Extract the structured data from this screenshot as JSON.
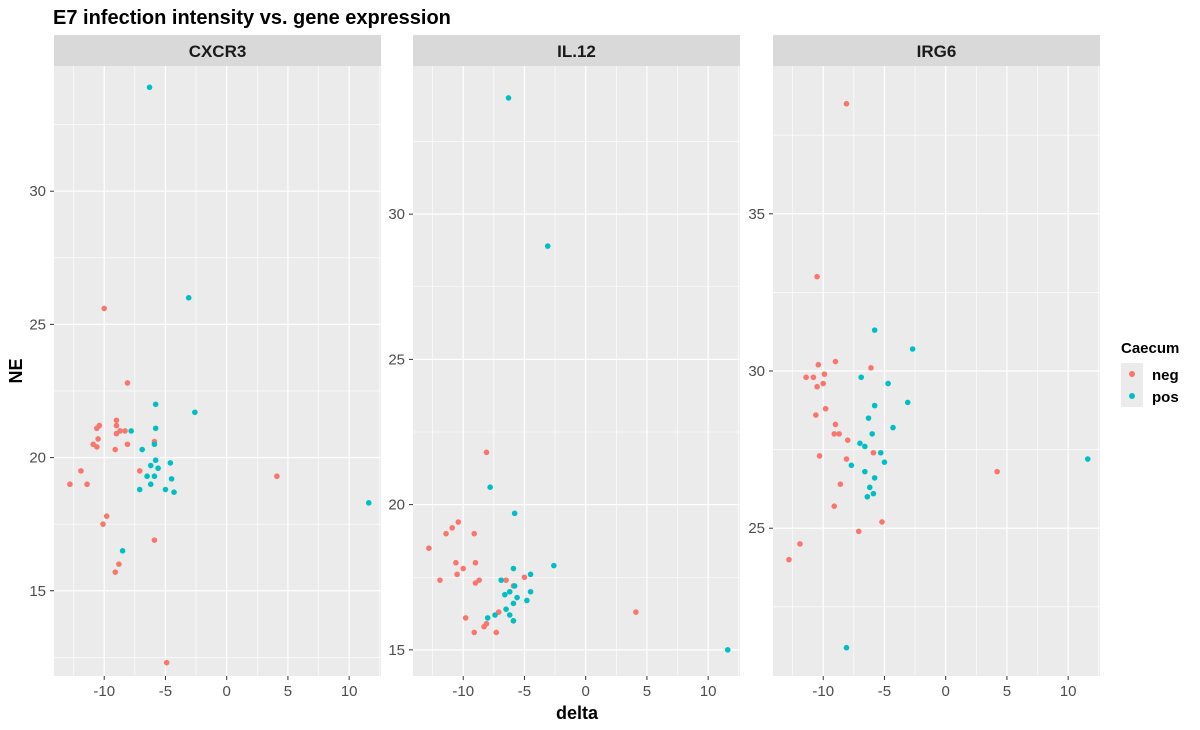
{
  "chart_data": {
    "type": "scatter",
    "title": "E7 infection intensity vs. gene expression",
    "xlabel": "delta",
    "ylabel": "NE",
    "legend": {
      "title": "Caecum",
      "position": "right",
      "entries": [
        {
          "name": "neg",
          "color": "#F8766D"
        },
        {
          "name": "pos",
          "color": "#00BFC4"
        }
      ]
    },
    "grid": true,
    "panel_background": "#EBEBEB",
    "strip_background": "#D9D9D9",
    "x_ticks": [
      -10,
      -5,
      0,
      5,
      10
    ],
    "xlim": [
      -14.1,
      12.6
    ],
    "facets": [
      {
        "strip": "CXCR3",
        "ylim": [
          11.8,
          34.7
        ],
        "y_ticks": [
          15,
          20,
          25,
          30
        ],
        "series": [
          {
            "name": "neg",
            "points": [
              [
                -12.8,
                19.0
              ],
              [
                -11.9,
                19.5
              ],
              [
                -11.4,
                19.0
              ],
              [
                -10.9,
                20.5
              ],
              [
                -10.6,
                20.4
              ],
              [
                -10.6,
                21.1
              ],
              [
                -10.5,
                20.7
              ],
              [
                -10.4,
                21.2
              ],
              [
                -10.0,
                25.6
              ],
              [
                -9.8,
                17.8
              ],
              [
                -10.1,
                17.5
              ],
              [
                -9.0,
                21.4
              ],
              [
                -9.0,
                21.2
              ],
              [
                -9.1,
                20.3
              ],
              [
                -8.7,
                21.0
              ],
              [
                -9.0,
                20.9
              ],
              [
                -8.3,
                21.0
              ],
              [
                -8.1,
                20.5
              ],
              [
                -8.1,
                22.8
              ],
              [
                -7.1,
                19.5
              ],
              [
                -9.1,
                15.7
              ],
              [
                -8.8,
                16.0
              ],
              [
                -5.9,
                20.6
              ],
              [
                -5.9,
                16.9
              ],
              [
                -4.9,
                12.3
              ],
              [
                4.1,
                19.3
              ]
            ]
          },
          {
            "name": "pos",
            "points": [
              [
                -6.3,
                33.9
              ],
              [
                -3.1,
                26.0
              ],
              [
                -2.6,
                21.7
              ],
              [
                -5.8,
                22.0
              ],
              [
                -5.8,
                21.1
              ],
              [
                -5.9,
                20.5
              ],
              [
                -7.8,
                21.0
              ],
              [
                -8.5,
                16.5
              ],
              [
                -6.9,
                20.3
              ],
              [
                -5.8,
                19.9
              ],
              [
                -6.2,
                19.7
              ],
              [
                -5.6,
                19.6
              ],
              [
                -4.6,
                19.8
              ],
              [
                -5.9,
                19.3
              ],
              [
                -6.5,
                19.3
              ],
              [
                -4.5,
                19.2
              ],
              [
                -7.1,
                18.8
              ],
              [
                -6.2,
                19.0
              ],
              [
                -5.0,
                18.8
              ],
              [
                -4.3,
                18.7
              ],
              [
                11.6,
                18.3
              ]
            ]
          }
        ]
      },
      {
        "strip": "IL.12",
        "ylim": [
          14.1,
          35.1
        ],
        "y_ticks": [
          15,
          20,
          25,
          30
        ],
        "series": [
          {
            "name": "neg",
            "points": [
              [
                -12.8,
                18.5
              ],
              [
                -11.9,
                17.4
              ],
              [
                -11.4,
                19.0
              ],
              [
                -10.9,
                19.2
              ],
              [
                -10.6,
                18.0
              ],
              [
                -10.5,
                17.6
              ],
              [
                -10.4,
                19.4
              ],
              [
                -10.0,
                17.8
              ],
              [
                -9.8,
                16.1
              ],
              [
                -9.1,
                19.0
              ],
              [
                -9.0,
                18.0
              ],
              [
                -9.0,
                17.3
              ],
              [
                -8.7,
                17.4
              ],
              [
                -8.3,
                15.8
              ],
              [
                -9.1,
                15.6
              ],
              [
                -8.1,
                15.9
              ],
              [
                -8.1,
                21.8
              ],
              [
                -7.1,
                16.3
              ],
              [
                -7.3,
                15.6
              ],
              [
                -6.5,
                17.4
              ],
              [
                -5.9,
                17.2
              ],
              [
                -5.9,
                16.0
              ],
              [
                -5.0,
                17.5
              ],
              [
                4.1,
                16.3
              ]
            ]
          },
          {
            "name": "pos",
            "points": [
              [
                -6.3,
                34.0
              ],
              [
                -3.1,
                28.9
              ],
              [
                -7.8,
                20.6
              ],
              [
                -5.8,
                19.7
              ],
              [
                -2.6,
                17.9
              ],
              [
                -5.9,
                17.8
              ],
              [
                -4.5,
                17.6
              ],
              [
                -6.9,
                17.4
              ],
              [
                -5.8,
                17.2
              ],
              [
                -6.2,
                17.0
              ],
              [
                -4.5,
                17.0
              ],
              [
                -5.6,
                16.8
              ],
              [
                -4.8,
                16.7
              ],
              [
                -6.6,
                16.9
              ],
              [
                -7.4,
                16.2
              ],
              [
                -8.0,
                16.1
              ],
              [
                -6.5,
                16.4
              ],
              [
                -5.9,
                16.6
              ],
              [
                -5.9,
                16.0
              ],
              [
                -6.2,
                16.2
              ],
              [
                11.6,
                15.0
              ]
            ]
          }
        ]
      },
      {
        "strip": "IRG6",
        "ylim": [
          20.3,
          39.7
        ],
        "y_ticks": [
          25,
          30,
          35
        ],
        "series": [
          {
            "name": "neg",
            "points": [
              [
                -8.1,
                38.5
              ],
              [
                -10.5,
                33.0
              ],
              [
                -9.0,
                30.3
              ],
              [
                -10.4,
                30.2
              ],
              [
                -9.9,
                29.9
              ],
              [
                -11.4,
                29.8
              ],
              [
                -10.8,
                29.8
              ],
              [
                -10.5,
                29.5
              ],
              [
                -10.0,
                29.6
              ],
              [
                -12.8,
                24.0
              ],
              [
                -11.9,
                24.5
              ],
              [
                -9.8,
                28.8
              ],
              [
                -10.6,
                28.6
              ],
              [
                -9.0,
                28.3
              ],
              [
                -9.1,
                28.0
              ],
              [
                -8.7,
                28.0
              ],
              [
                -8.0,
                27.8
              ],
              [
                -6.1,
                30.1
              ],
              [
                -10.3,
                27.3
              ],
              [
                -8.1,
                27.2
              ],
              [
                -8.6,
                26.4
              ],
              [
                -9.1,
                25.7
              ],
              [
                -7.1,
                24.9
              ],
              [
                -5.9,
                27.4
              ],
              [
                -5.2,
                25.2
              ],
              [
                4.2,
                26.8
              ]
            ]
          },
          {
            "name": "pos",
            "points": [
              [
                -5.8,
                31.3
              ],
              [
                -2.7,
                30.7
              ],
              [
                -6.9,
                29.8
              ],
              [
                -4.7,
                29.6
              ],
              [
                -3.1,
                29.0
              ],
              [
                -5.8,
                28.9
              ],
              [
                -6.3,
                28.5
              ],
              [
                -4.3,
                28.2
              ],
              [
                -6.0,
                28.0
              ],
              [
                -7.0,
                27.7
              ],
              [
                -6.6,
                27.6
              ],
              [
                -5.3,
                27.4
              ],
              [
                -5.0,
                27.1
              ],
              [
                -7.7,
                27.0
              ],
              [
                -6.6,
                26.8
              ],
              [
                -5.8,
                26.6
              ],
              [
                -6.2,
                26.3
              ],
              [
                -5.9,
                26.1
              ],
              [
                -6.4,
                26.0
              ],
              [
                -8.1,
                21.2
              ],
              [
                11.6,
                27.2
              ]
            ]
          }
        ]
      }
    ]
  }
}
